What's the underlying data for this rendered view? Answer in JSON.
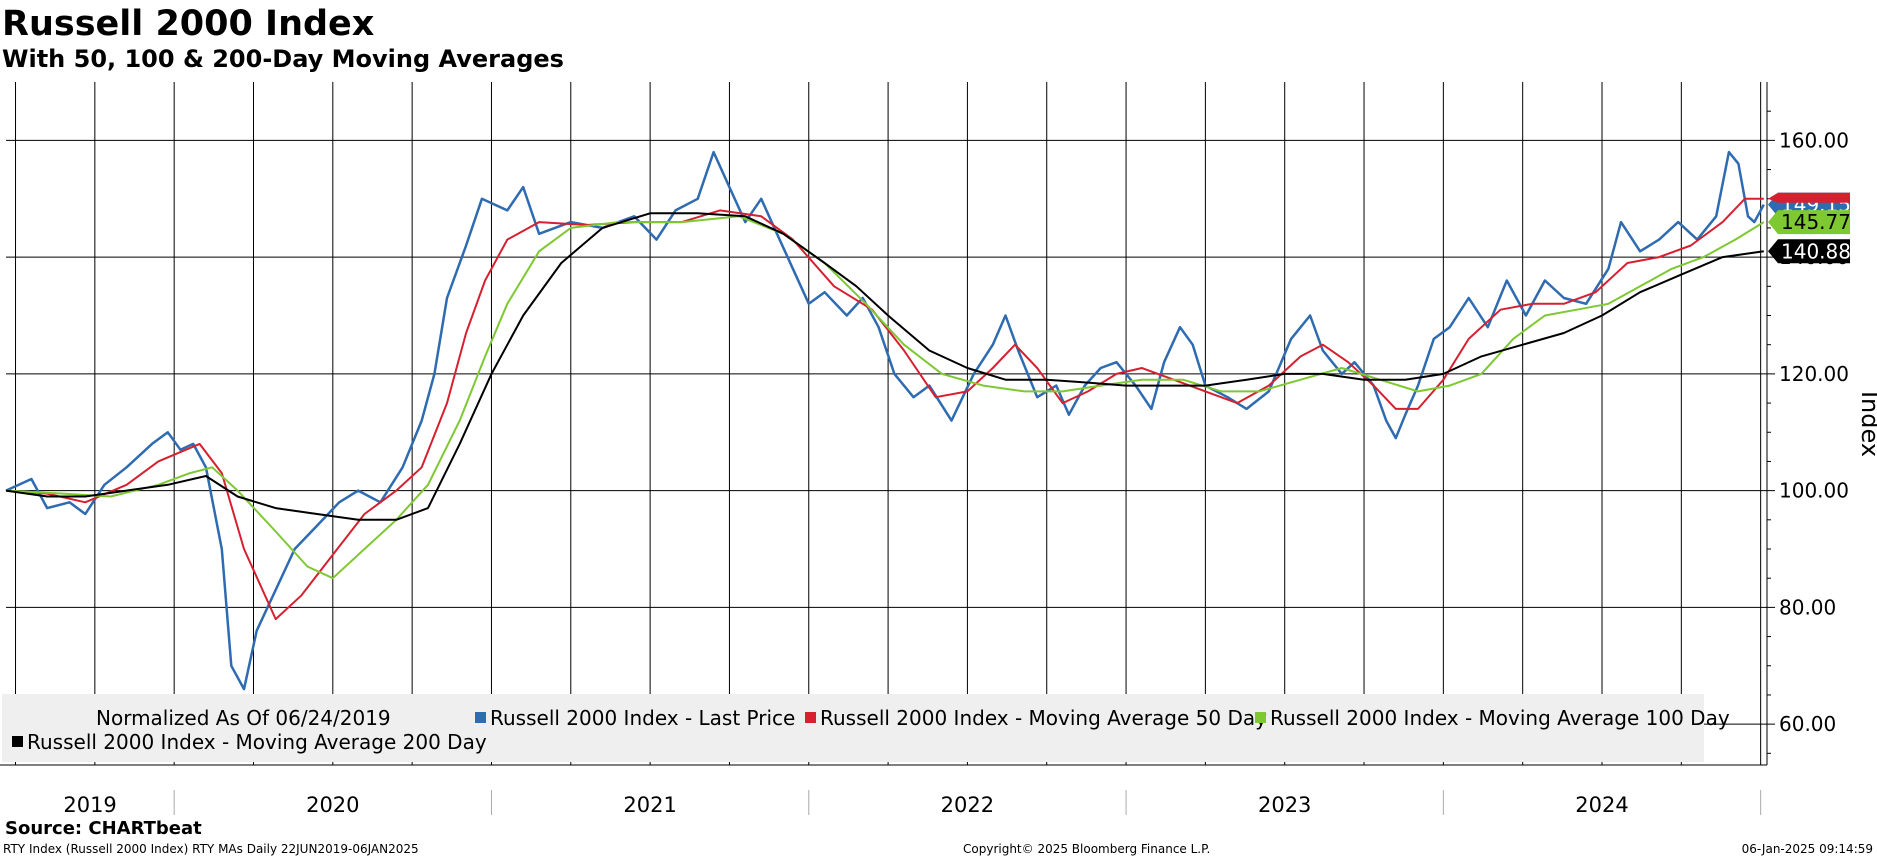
{
  "chart_data": {
    "type": "line",
    "title": "Russell 2000 Index",
    "subtitle": "With 50, 100 & 200-Day Moving Averages",
    "xlabel": "",
    "ylabel": "Index",
    "ylim": [
      53,
      170
    ],
    "xlim": [
      2019.47,
      2025.02
    ],
    "y_ticks": [
      "60.00",
      "80.00",
      "100.00",
      "120.00",
      "140.00",
      "160.00"
    ],
    "x_ticks": [
      "2019",
      "2020",
      "2021",
      "2022",
      "2023",
      "2024"
    ],
    "grid": true,
    "legend_note": "Normalized As Of 06/24/2019",
    "legend_position": "bottom-left",
    "series": [
      {
        "name": "Russell 2000 Index - Last Price",
        "color": "#2e6bb0",
        "last_value": "149.15",
        "points": [
          [
            2019.47,
            100
          ],
          [
            2019.55,
            102
          ],
          [
            2019.6,
            97
          ],
          [
            2019.67,
            98
          ],
          [
            2019.72,
            96
          ],
          [
            2019.78,
            101
          ],
          [
            2019.85,
            104
          ],
          [
            2019.93,
            108
          ],
          [
            2019.98,
            110
          ],
          [
            2020.02,
            107
          ],
          [
            2020.06,
            108
          ],
          [
            2020.1,
            104
          ],
          [
            2020.15,
            90
          ],
          [
            2020.18,
            70
          ],
          [
            2020.22,
            66
          ],
          [
            2020.26,
            76
          ],
          [
            2020.32,
            83
          ],
          [
            2020.38,
            90
          ],
          [
            2020.45,
            94
          ],
          [
            2020.52,
            98
          ],
          [
            2020.58,
            100
          ],
          [
            2020.65,
            98
          ],
          [
            2020.72,
            104
          ],
          [
            2020.78,
            112
          ],
          [
            2020.82,
            120
          ],
          [
            2020.86,
            133
          ],
          [
            2020.92,
            142
          ],
          [
            2020.97,
            150
          ],
          [
            2021.05,
            148
          ],
          [
            2021.1,
            152
          ],
          [
            2021.15,
            144
          ],
          [
            2021.25,
            146
          ],
          [
            2021.35,
            145
          ],
          [
            2021.45,
            147
          ],
          [
            2021.52,
            143
          ],
          [
            2021.58,
            148
          ],
          [
            2021.65,
            150
          ],
          [
            2021.7,
            158
          ],
          [
            2021.75,
            152
          ],
          [
            2021.8,
            146
          ],
          [
            2021.85,
            150
          ],
          [
            2021.9,
            144
          ],
          [
            2021.95,
            138
          ],
          [
            2022.0,
            132
          ],
          [
            2022.05,
            134
          ],
          [
            2022.12,
            130
          ],
          [
            2022.17,
            133
          ],
          [
            2022.22,
            128
          ],
          [
            2022.27,
            120
          ],
          [
            2022.33,
            116
          ],
          [
            2022.38,
            118
          ],
          [
            2022.45,
            112
          ],
          [
            2022.52,
            120
          ],
          [
            2022.58,
            125
          ],
          [
            2022.62,
            130
          ],
          [
            2022.66,
            124
          ],
          [
            2022.72,
            116
          ],
          [
            2022.78,
            118
          ],
          [
            2022.82,
            113
          ],
          [
            2022.87,
            118
          ],
          [
            2022.92,
            121
          ],
          [
            2022.97,
            122
          ],
          [
            2023.03,
            118
          ],
          [
            2023.08,
            114
          ],
          [
            2023.12,
            122
          ],
          [
            2023.17,
            128
          ],
          [
            2023.21,
            125
          ],
          [
            2023.25,
            118
          ],
          [
            2023.32,
            116
          ],
          [
            2023.38,
            114
          ],
          [
            2023.45,
            117
          ],
          [
            2023.52,
            126
          ],
          [
            2023.58,
            130
          ],
          [
            2023.62,
            124
          ],
          [
            2023.68,
            120
          ],
          [
            2023.72,
            122
          ],
          [
            2023.78,
            118
          ],
          [
            2023.82,
            112
          ],
          [
            2023.85,
            109
          ],
          [
            2023.88,
            113
          ],
          [
            2023.92,
            118
          ],
          [
            2023.97,
            126
          ],
          [
            2024.02,
            128
          ],
          [
            2024.08,
            133
          ],
          [
            2024.14,
            128
          ],
          [
            2024.2,
            136
          ],
          [
            2024.26,
            130
          ],
          [
            2024.32,
            136
          ],
          [
            2024.38,
            133
          ],
          [
            2024.45,
            132
          ],
          [
            2024.52,
            138
          ],
          [
            2024.56,
            146
          ],
          [
            2024.62,
            141
          ],
          [
            2024.68,
            143
          ],
          [
            2024.74,
            146
          ],
          [
            2024.8,
            143
          ],
          [
            2024.86,
            147
          ],
          [
            2024.9,
            158
          ],
          [
            2024.93,
            156
          ],
          [
            2024.96,
            147
          ],
          [
            2024.98,
            146
          ],
          [
            2025.01,
            149
          ]
        ]
      },
      {
        "name": "Russell 2000 Index - Moving Average 50 Day",
        "color": "#d62030",
        "last_value": "",
        "points": [
          [
            2019.47,
            100
          ],
          [
            2019.6,
            99.5
          ],
          [
            2019.72,
            98
          ],
          [
            2019.85,
            101
          ],
          [
            2019.95,
            105
          ],
          [
            2020.08,
            108
          ],
          [
            2020.15,
            103
          ],
          [
            2020.22,
            90
          ],
          [
            2020.32,
            78
          ],
          [
            2020.4,
            82
          ],
          [
            2020.5,
            89
          ],
          [
            2020.6,
            96
          ],
          [
            2020.7,
            100
          ],
          [
            2020.78,
            104
          ],
          [
            2020.86,
            115
          ],
          [
            2020.92,
            127
          ],
          [
            2020.98,
            136
          ],
          [
            2021.05,
            143
          ],
          [
            2021.15,
            146
          ],
          [
            2021.3,
            145.5
          ],
          [
            2021.45,
            146
          ],
          [
            2021.6,
            146
          ],
          [
            2021.72,
            148
          ],
          [
            2021.85,
            147
          ],
          [
            2021.95,
            143
          ],
          [
            2022.08,
            135
          ],
          [
            2022.2,
            131
          ],
          [
            2022.3,
            124
          ],
          [
            2022.4,
            116
          ],
          [
            2022.5,
            117
          ],
          [
            2022.58,
            121
          ],
          [
            2022.65,
            125
          ],
          [
            2022.72,
            121
          ],
          [
            2022.8,
            115
          ],
          [
            2022.88,
            117
          ],
          [
            2022.97,
            120
          ],
          [
            2023.05,
            121
          ],
          [
            2023.15,
            119
          ],
          [
            2023.25,
            117
          ],
          [
            2023.35,
            115
          ],
          [
            2023.45,
            118
          ],
          [
            2023.55,
            123
          ],
          [
            2023.62,
            125
          ],
          [
            2023.7,
            122
          ],
          [
            2023.78,
            118
          ],
          [
            2023.85,
            114
          ],
          [
            2023.92,
            114
          ],
          [
            2024.0,
            119
          ],
          [
            2024.08,
            126
          ],
          [
            2024.18,
            131
          ],
          [
            2024.28,
            132
          ],
          [
            2024.38,
            132
          ],
          [
            2024.48,
            134
          ],
          [
            2024.58,
            139
          ],
          [
            2024.68,
            140
          ],
          [
            2024.78,
            142
          ],
          [
            2024.88,
            146
          ],
          [
            2024.95,
            150
          ],
          [
            2025.01,
            150
          ]
        ]
      },
      {
        "name": "Russell 2000 Index - Moving Average 100 Day",
        "color": "#7ec832",
        "last_value": "145.77",
        "points": [
          [
            2019.47,
            100
          ],
          [
            2019.65,
            99.5
          ],
          [
            2019.8,
            99
          ],
          [
            2019.95,
            101
          ],
          [
            2020.05,
            103
          ],
          [
            2020.12,
            104
          ],
          [
            2020.2,
            100
          ],
          [
            2020.32,
            93
          ],
          [
            2020.42,
            87
          ],
          [
            2020.5,
            85
          ],
          [
            2020.6,
            90
          ],
          [
            2020.7,
            95
          ],
          [
            2020.8,
            101
          ],
          [
            2020.9,
            112
          ],
          [
            2020.98,
            123
          ],
          [
            2021.05,
            132
          ],
          [
            2021.15,
            141
          ],
          [
            2021.25,
            145
          ],
          [
            2021.4,
            146
          ],
          [
            2021.6,
            146
          ],
          [
            2021.78,
            147
          ],
          [
            2021.92,
            144
          ],
          [
            2022.05,
            139
          ],
          [
            2022.18,
            132
          ],
          [
            2022.3,
            125
          ],
          [
            2022.42,
            120
          ],
          [
            2022.55,
            118
          ],
          [
            2022.68,
            117
          ],
          [
            2022.8,
            117
          ],
          [
            2022.92,
            118
          ],
          [
            2023.05,
            119
          ],
          [
            2023.18,
            119
          ],
          [
            2023.3,
            117
          ],
          [
            2023.42,
            117
          ],
          [
            2023.55,
            119
          ],
          [
            2023.68,
            121
          ],
          [
            2023.8,
            119
          ],
          [
            2023.92,
            117
          ],
          [
            2024.02,
            118
          ],
          [
            2024.12,
            120
          ],
          [
            2024.22,
            126
          ],
          [
            2024.32,
            130
          ],
          [
            2024.42,
            131
          ],
          [
            2024.52,
            132
          ],
          [
            2024.62,
            135
          ],
          [
            2024.72,
            138
          ],
          [
            2024.82,
            140
          ],
          [
            2024.92,
            143
          ],
          [
            2025.01,
            146
          ]
        ]
      },
      {
        "name": "Russell 2000 Index - Moving Average 200 Day",
        "color": "#000000",
        "last_value": "140.88",
        "points": [
          [
            2019.47,
            100
          ],
          [
            2019.6,
            99
          ],
          [
            2019.72,
            99
          ],
          [
            2019.85,
            100
          ],
          [
            2019.98,
            101
          ],
          [
            2020.1,
            102.5
          ],
          [
            2020.2,
            99
          ],
          [
            2020.32,
            97
          ],
          [
            2020.45,
            96
          ],
          [
            2020.58,
            95
          ],
          [
            2020.7,
            95
          ],
          [
            2020.8,
            97
          ],
          [
            2020.9,
            108
          ],
          [
            2021.0,
            120
          ],
          [
            2021.1,
            130
          ],
          [
            2021.22,
            139
          ],
          [
            2021.35,
            145
          ],
          [
            2021.5,
            147.5
          ],
          [
            2021.65,
            147.5
          ],
          [
            2021.8,
            147
          ],
          [
            2021.92,
            144
          ],
          [
            2022.05,
            139
          ],
          [
            2022.15,
            135
          ],
          [
            2022.25,
            130
          ],
          [
            2022.38,
            124
          ],
          [
            2022.5,
            121
          ],
          [
            2022.62,
            119
          ],
          [
            2022.75,
            119
          ],
          [
            2022.88,
            118.5
          ],
          [
            2023.0,
            118
          ],
          [
            2023.12,
            118
          ],
          [
            2023.25,
            118
          ],
          [
            2023.38,
            119
          ],
          [
            2023.5,
            120
          ],
          [
            2023.62,
            120
          ],
          [
            2023.75,
            119
          ],
          [
            2023.88,
            119
          ],
          [
            2024.0,
            120
          ],
          [
            2024.12,
            123
          ],
          [
            2024.25,
            125
          ],
          [
            2024.38,
            127
          ],
          [
            2024.5,
            130
          ],
          [
            2024.62,
            134
          ],
          [
            2024.75,
            137
          ],
          [
            2024.88,
            140
          ],
          [
            2025.01,
            141
          ]
        ]
      }
    ]
  },
  "footer": {
    "source": "Source: CHARTbeat",
    "left": "RTY Index (Russell 2000 Index) RTY MAs  Daily 22JUN2019-06JAN2025",
    "center": "Copyright© 2025 Bloomberg Finance L.P.",
    "right": "06-Jan-2025 09:14:59"
  }
}
